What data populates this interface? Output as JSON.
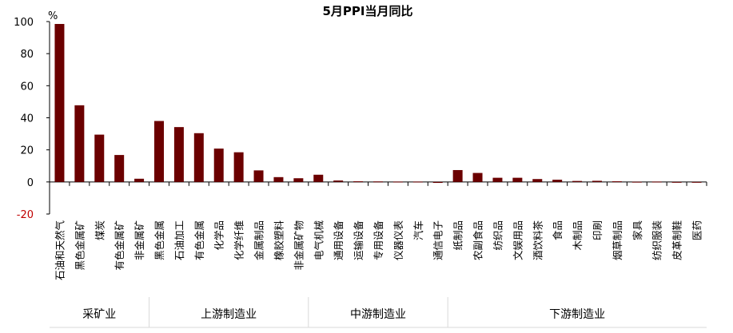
{
  "chart_data": {
    "type": "bar",
    "title": "5月PPI当月同比",
    "unit_label": "%",
    "ylim": [
      -20,
      100
    ],
    "yticks": [
      -20,
      0,
      20,
      40,
      60,
      80,
      100
    ],
    "negative_tick_color": "#c00000",
    "bar_color": "#6b0000",
    "grid": false,
    "categories": [
      "石油和天然气",
      "黑色金属矿",
      "煤炭",
      "有色金属矿",
      "非金属矿",
      "黑色金属",
      "石油加工",
      "有色金属",
      "化学品",
      "化学纤维",
      "金属制品",
      "橡胶塑料",
      "非金属矿物",
      "电气机械",
      "通用设备",
      "运输设备",
      "专用设备",
      "仪器仪表",
      "汽车",
      "通信电子",
      "纸制品",
      "农副食品",
      "纺织品",
      "文娱用品",
      "酒饮料茶",
      "食品",
      "木制品",
      "印刷",
      "烟草制品",
      "家具",
      "纺织服装",
      "皮革制鞋",
      "医药"
    ],
    "values": [
      98.5,
      47.8,
      29.5,
      16.8,
      2.0,
      38.0,
      34.2,
      30.4,
      20.8,
      18.5,
      7.2,
      3.0,
      2.3,
      4.5,
      0.9,
      0.4,
      0.3,
      0.2,
      0.2,
      -0.6,
      7.4,
      5.6,
      2.6,
      2.6,
      1.8,
      1.4,
      0.6,
      0.7,
      0.4,
      0.1,
      0.2,
      -0.2,
      -0.4
    ],
    "groups": [
      {
        "name": "采矿业",
        "start": 0,
        "count": 5
      },
      {
        "name": "上游制造业",
        "start": 5,
        "count": 8
      },
      {
        "name": "中游制造业",
        "start": 13,
        "count": 7
      },
      {
        "name": "下游制造业",
        "start": 20,
        "count": 13
      }
    ]
  }
}
